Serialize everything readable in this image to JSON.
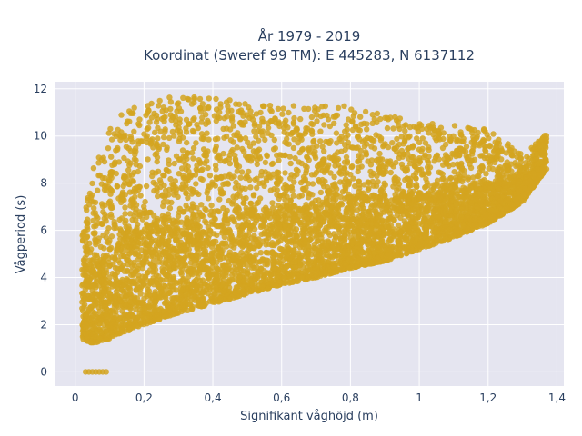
{
  "chart_data": {
    "type": "scatter",
    "title_line1": "År 1979 - 2019",
    "title_line2": "Koordinat (Sweref 99 TM): E 445283, N 6137112",
    "xlabel": "Signifikant våghöjd (m)",
    "ylabel": "Vågperiod (s)",
    "xlim": [
      -0.06,
      1.42
    ],
    "ylim": [
      -0.6,
      12.3
    ],
    "x_ticks": [
      0,
      0.2,
      0.4,
      0.6,
      0.8,
      1,
      1.2,
      1.4
    ],
    "x_tick_labels": [
      "0",
      "0,2",
      "0,4",
      "0,6",
      "0,8",
      "1",
      "1,2",
      "1,4"
    ],
    "y_ticks": [
      0,
      2,
      4,
      6,
      8,
      10,
      12
    ],
    "y_tick_labels": [
      "0",
      "2",
      "4",
      "6",
      "8",
      "10",
      "12"
    ],
    "grid": true,
    "marker_color": "#D4A520",
    "background_color": "#E5E5F0",
    "envelope": {
      "x": [
        0.02,
        0.05,
        0.1,
        0.15,
        0.2,
        0.3,
        0.4,
        0.5,
        0.6,
        0.7,
        0.8,
        0.9,
        1.0,
        1.1,
        1.2,
        1.3,
        1.37
      ],
      "y_lower": [
        1.4,
        1.2,
        1.4,
        1.7,
        2.0,
        2.5,
        2.9,
        3.3,
        3.7,
        4.0,
        4.4,
        4.7,
        5.2,
        5.7,
        6.3,
        7.2,
        8.6
      ],
      "y_upper": [
        6.0,
        8.6,
        10.3,
        11.2,
        11.5,
        11.7,
        11.6,
        11.5,
        11.3,
        11.3,
        11.3,
        10.9,
        10.6,
        10.5,
        10.3,
        9.2,
        10.1
      ]
    },
    "zero_points": {
      "x": [
        0.03,
        0.04,
        0.05,
        0.06,
        0.07,
        0.08,
        0.09
      ],
      "y": [
        0,
        0,
        0,
        0,
        0,
        0,
        0
      ]
    }
  }
}
